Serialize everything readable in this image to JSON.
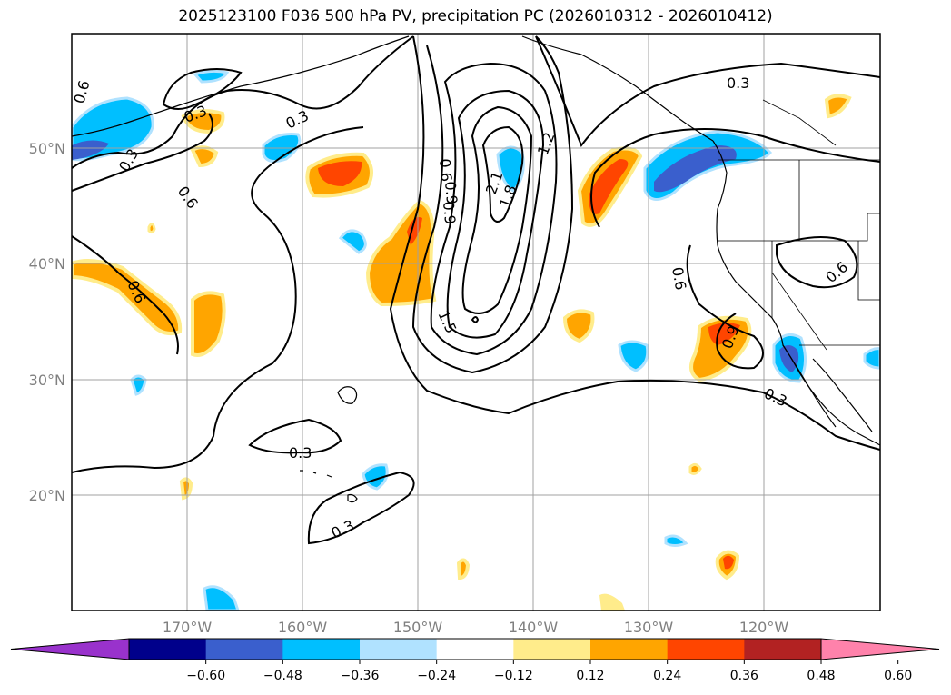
{
  "title": "2025123100 F036 500 hPa PV, precipitation PC (2026010312 - 2026010412)",
  "lat_labels": [
    "50°N",
    "40°N",
    "30°N",
    "20°N"
  ],
  "lon_labels": [
    "170°W",
    "160°W",
    "150°W",
    "140°W",
    "130°W",
    "120°W"
  ],
  "contour_labels": [
    "0.3",
    "0.3",
    "0.3",
    "0.3",
    "0.3",
    "0.3",
    "0.3",
    "0.6",
    "0.6",
    "0.6",
    "0.6",
    "0.6",
    "0.6",
    "0.9",
    "0.9",
    "0.9",
    "1.2",
    "1.5",
    "1.8",
    "2.1"
  ],
  "colorbar": {
    "ticks": [
      "−0.60",
      "−0.48",
      "−0.36",
      "−0.24",
      "−0.12",
      "0.12",
      "0.24",
      "0.36",
      "0.48",
      "0.60"
    ],
    "colors": [
      "#9932cc",
      "#00008b",
      "#3a5fcd",
      "#00bfff",
      "#b0e2ff",
      "#ffffff",
      "#ffec8b",
      "#ffa500",
      "#ff4500",
      "#b22222",
      "#ff82ab"
    ]
  }
}
